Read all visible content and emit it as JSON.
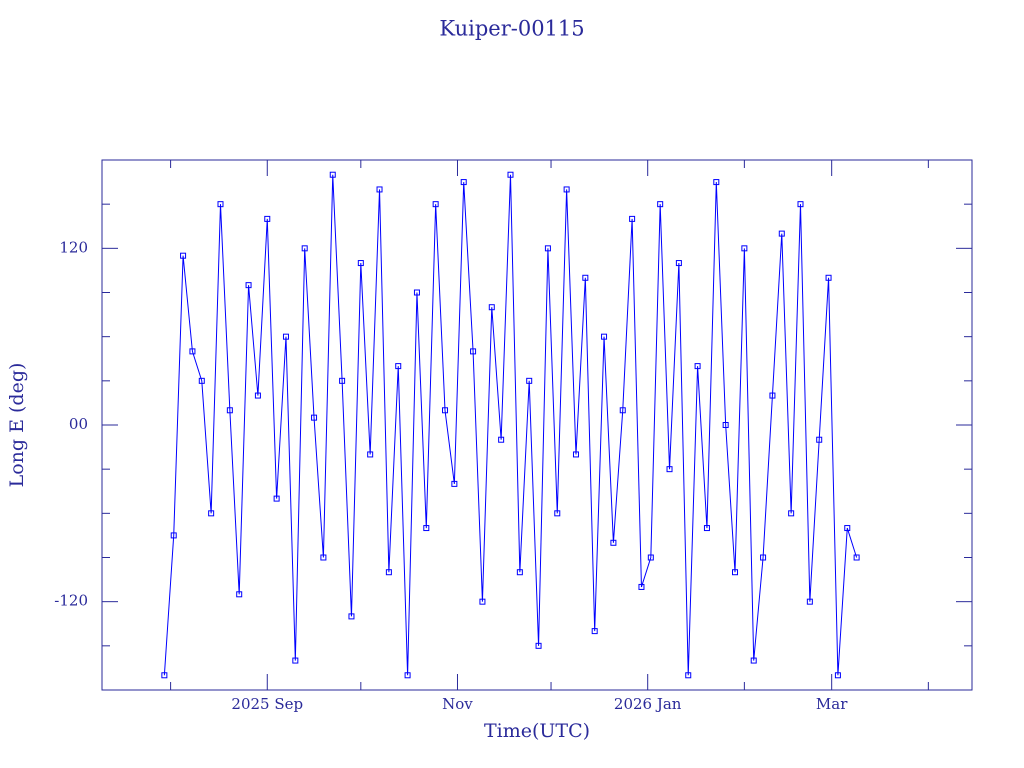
{
  "chart_data": {
    "type": "line",
    "title": "Kuiper-00115",
    "x_label": "Time(UTC)",
    "y_label": "Long E (deg)",
    "x": [
      "2025-07-30",
      "2025-08-02",
      "2025-08-05",
      "2025-08-08",
      "2025-08-11",
      "2025-08-14",
      "2025-08-17",
      "2025-08-20",
      "2025-08-23",
      "2025-08-26",
      "2025-08-29",
      "2025-09-01",
      "2025-09-04",
      "2025-09-07",
      "2025-09-10",
      "2025-09-13",
      "2025-09-16",
      "2025-09-19",
      "2025-09-22",
      "2025-09-25",
      "2025-09-28",
      "2025-10-01",
      "2025-10-04",
      "2025-10-07",
      "2025-10-10",
      "2025-10-13",
      "2025-10-16",
      "2025-10-19",
      "2025-10-22",
      "2025-10-25",
      "2025-10-28",
      "2025-10-31",
      "2025-11-03",
      "2025-11-06",
      "2025-11-09",
      "2025-11-12",
      "2025-11-15",
      "2025-11-18",
      "2025-11-21",
      "2025-11-24",
      "2025-11-27",
      "2025-11-30",
      "2025-12-03",
      "2025-12-06",
      "2025-12-09",
      "2025-12-12",
      "2025-12-15",
      "2025-12-18",
      "2025-12-21",
      "2025-12-24",
      "2025-12-27",
      "2025-12-30",
      "2026-01-02",
      "2026-01-05",
      "2026-01-08",
      "2026-01-11",
      "2026-01-14",
      "2026-01-17",
      "2026-01-20",
      "2026-01-23",
      "2026-01-26",
      "2026-01-29",
      "2026-02-01",
      "2026-02-04",
      "2026-02-07",
      "2026-02-10",
      "2026-02-13",
      "2026-02-16",
      "2026-02-19",
      "2026-02-22",
      "2026-02-25",
      "2026-02-28",
      "2026-03-03",
      "2026-03-06",
      "2026-03-09"
    ],
    "series": [
      {
        "name": "Kuiper-00115",
        "color": "#0000ff",
        "values": [
          -170,
          -75,
          115,
          50,
          30,
          -60,
          150,
          10,
          -115,
          95,
          20,
          140,
          -50,
          60,
          -160,
          120,
          5,
          -90,
          170,
          30,
          -130,
          110,
          -20,
          160,
          -100,
          40,
          -170,
          90,
          -70,
          150,
          10,
          -40,
          165,
          50,
          -120,
          80,
          -10,
          170,
          -100,
          30,
          -150,
          120,
          -60,
          160,
          -20,
          100,
          -140,
          60,
          -80,
          10,
          140,
          -110,
          -90,
          150,
          -30,
          110,
          -170,
          40,
          -70,
          165,
          0,
          -100,
          120,
          -160,
          -90,
          20,
          130,
          -60,
          150,
          -120,
          -10,
          100,
          -170,
          -70,
          -90
        ]
      }
    ],
    "xlim": [
      "2025-07-10",
      "2026-04-15"
    ],
    "xticks": [
      {
        "value": "2025-09-01",
        "label": "2025 Sep"
      },
      {
        "value": "2025-11-01",
        "label": "Nov"
      },
      {
        "value": "2026-01-01",
        "label": "2026 Jan"
      },
      {
        "value": "2026-03-01",
        "label": "Mar"
      }
    ],
    "xminor": [
      "2025-08-01",
      "2025-10-01",
      "2025-12-01",
      "2026-02-01",
      "2026-04-01"
    ],
    "ylim": [
      -180,
      180
    ],
    "yticks": [
      -120,
      {
        "value": 0,
        "label": "00"
      },
      120
    ],
    "yminor": [
      -150,
      -90,
      -60,
      -30,
      30,
      60,
      90,
      150
    ],
    "grid": false,
    "markers": true
  }
}
